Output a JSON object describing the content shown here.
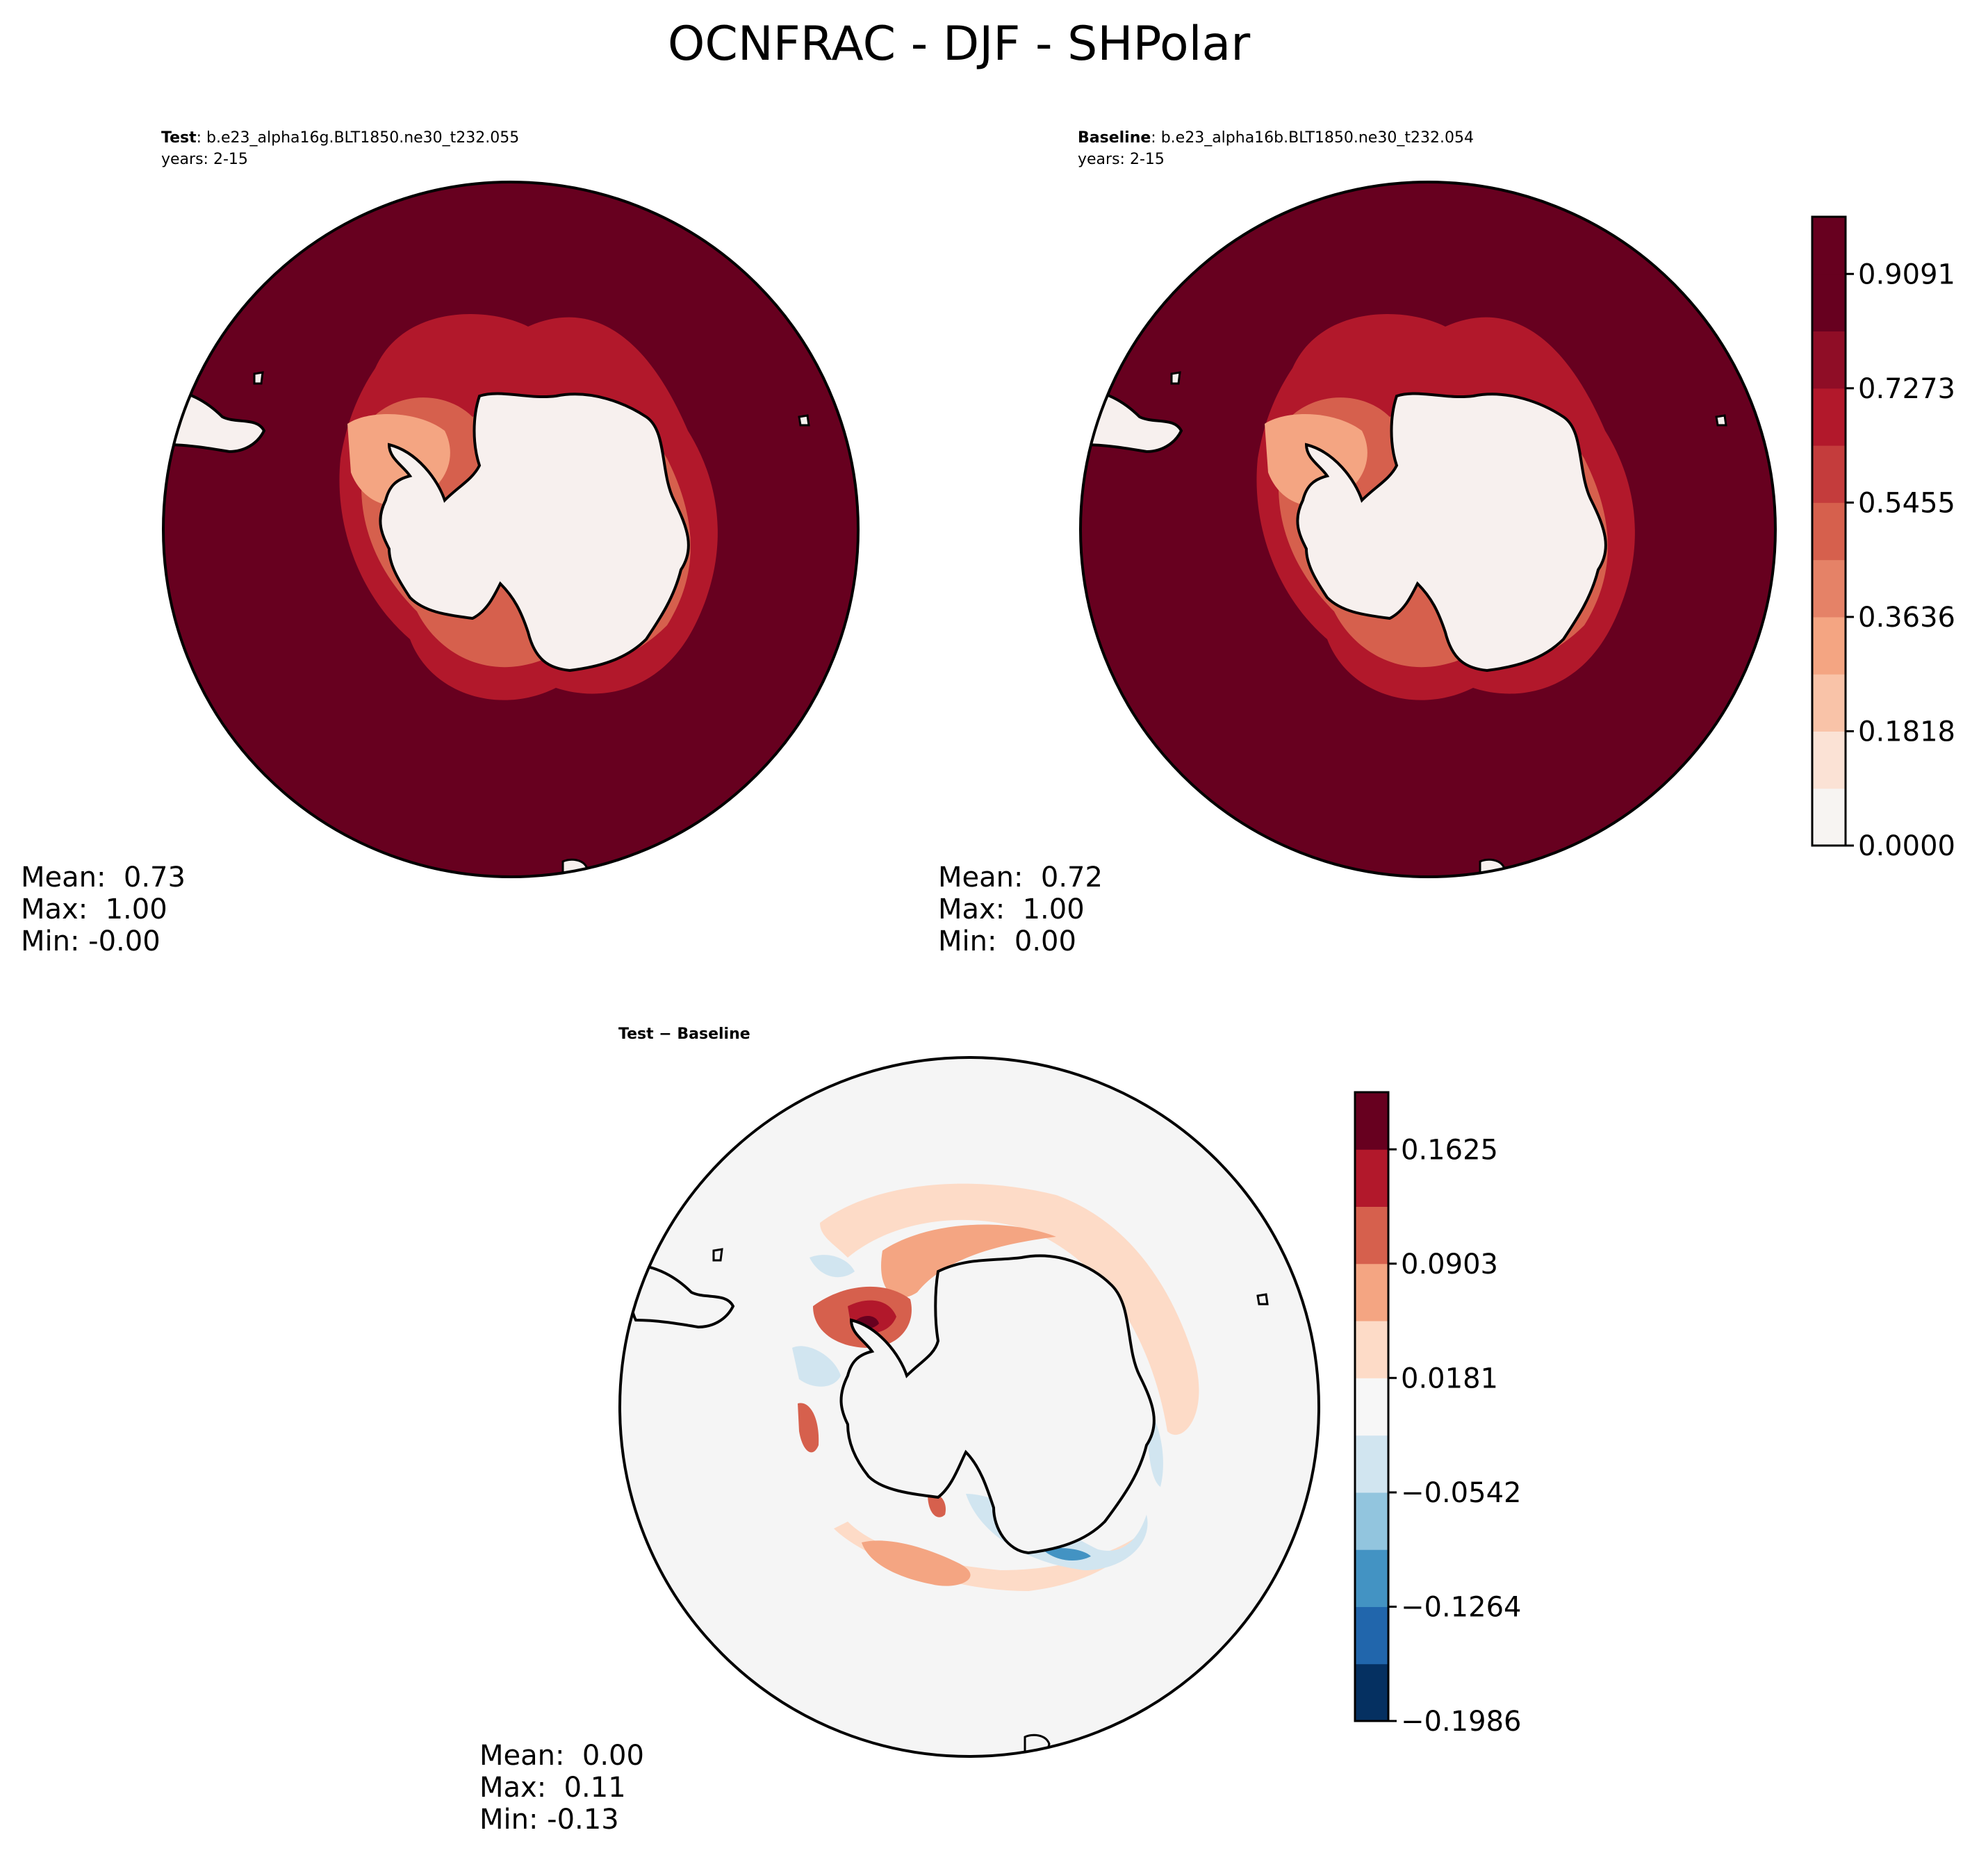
{
  "figure": {
    "title": "OCNFRAC - DJF - SHPolar"
  },
  "panels": {
    "test": {
      "label_bold": "Test",
      "label_rest": ": b.e23_alpha16g.BLT1850.ne30_t232.055",
      "years": "years: 2-15",
      "stats": [
        "Mean:  0.73",
        "Max:  1.00",
        "Min: -0.00"
      ]
    },
    "baseline": {
      "label_bold": "Baseline",
      "label_rest": ": b.e23_alpha16b.BLT1850.ne30_t232.054",
      "years": "years: 2-15",
      "stats": [
        "Mean:  0.72",
        "Max:  1.00",
        "Min:  0.00"
      ]
    },
    "diff": {
      "label_bold": "Test − Baseline",
      "stats": [
        "Mean:  0.00",
        "Max:  0.11",
        "Min: -0.13"
      ]
    }
  },
  "colors": {
    "ocean": "#67001f",
    "land": "#f7f0ee",
    "diff_background": "#f5f5f5"
  },
  "chart_data": [
    {
      "type": "heatmap",
      "projection": "south-polar-stereographic",
      "panel": "test",
      "colorbar_levels": [
        0.0,
        0.0909,
        0.1818,
        0.2727,
        0.3636,
        0.4545,
        0.5455,
        0.6364,
        0.7273,
        0.8182,
        0.9091,
        1.0
      ],
      "colorbar_ticks": [
        "0.0000",
        "0.1818",
        "0.3636",
        "0.5455",
        "0.7273",
        "0.9091"
      ],
      "colorbar_colors": [
        "#f7f4f2",
        "#fbe2d5",
        "#f9c3a8",
        "#f4a582",
        "#e58267",
        "#d6604d",
        "#c43c3c",
        "#b2182b",
        "#8f0d26",
        "#67001f",
        "#67001f"
      ],
      "mean": 0.73,
      "max": 1.0,
      "min": -0.0
    },
    {
      "type": "heatmap",
      "projection": "south-polar-stereographic",
      "panel": "baseline",
      "colorbar_levels": [
        0.0,
        0.0909,
        0.1818,
        0.2727,
        0.3636,
        0.4545,
        0.5455,
        0.6364,
        0.7273,
        0.8182,
        0.9091,
        1.0
      ],
      "colorbar_ticks": [
        "0.0000",
        "0.1818",
        "0.3636",
        "0.5455",
        "0.7273",
        "0.9091"
      ],
      "colorbar_colors": [
        "#f7f4f2",
        "#fbe2d5",
        "#f9c3a8",
        "#f4a582",
        "#e58267",
        "#d6604d",
        "#c43c3c",
        "#b2182b",
        "#8f0d26",
        "#67001f",
        "#67001f"
      ],
      "mean": 0.72,
      "max": 1.0,
      "min": 0.0
    },
    {
      "type": "heatmap",
      "projection": "south-polar-stereographic",
      "panel": "diff",
      "colorbar_levels": [
        -0.1986,
        -0.1625,
        -0.1264,
        -0.0903,
        -0.0542,
        -0.0181,
        0.0181,
        0.0542,
        0.0903,
        0.1264,
        0.1625,
        0.1986
      ],
      "colorbar_ticks": [
        "−0.1986",
        "−0.1264",
        "−0.0542",
        "0.0181",
        "0.0903",
        "0.1625"
      ],
      "colorbar_colors": [
        "#053061",
        "#2166ac",
        "#4393c3",
        "#92c5de",
        "#d1e5f0",
        "#f7f7f7",
        "#fddbc7",
        "#f4a582",
        "#d6604d",
        "#b2182b",
        "#67001f"
      ],
      "mean": 0.0,
      "max": 0.11,
      "min": -0.13
    }
  ]
}
